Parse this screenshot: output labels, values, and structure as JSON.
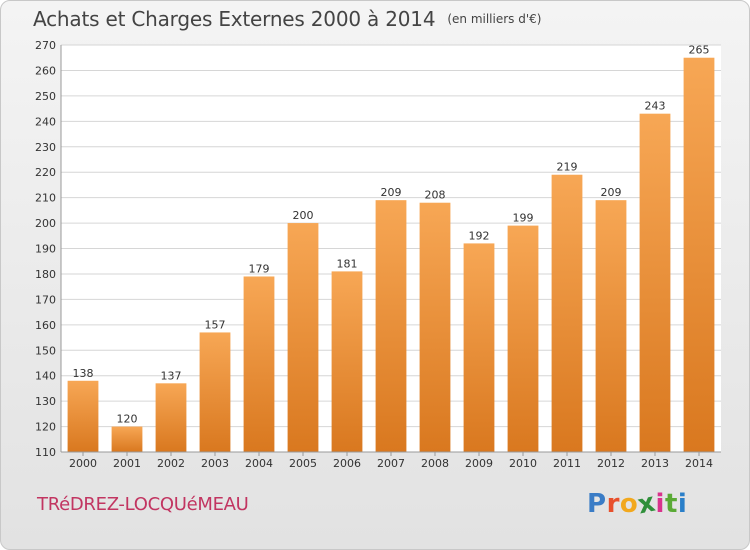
{
  "header": {
    "title": "Achats et Charges Externes 2000 à 2014",
    "unit": "(en milliers d'€)"
  },
  "footer": {
    "commune": "TRéDREZ-LOCQUéMEAU",
    "logo_letters": [
      "P",
      "r",
      "o",
      "x",
      "i",
      "t",
      "i"
    ],
    "logo_colors": [
      "#3a7cc6",
      "#e8502c",
      "#f2a81d",
      "#2f8f3a",
      "#d9338c",
      "#5aaa35",
      "#2a7fc9"
    ]
  },
  "colors": {
    "bar_top": "#f7a755",
    "bar_bottom": "#d9781f",
    "grid": "#d6d6d6",
    "axis": "#999999",
    "text": "#333333"
  },
  "chart_data": {
    "type": "bar",
    "categories": [
      "2000",
      "2001",
      "2002",
      "2003",
      "2004",
      "2005",
      "2006",
      "2007",
      "2008",
      "2009",
      "2010",
      "2011",
      "2012",
      "2013",
      "2014"
    ],
    "values": [
      138,
      120,
      137,
      157,
      179,
      200,
      181,
      209,
      208,
      192,
      199,
      219,
      209,
      243,
      265
    ],
    "ylim": [
      110,
      270
    ],
    "yticks": [
      110,
      120,
      130,
      140,
      150,
      160,
      170,
      180,
      190,
      200,
      210,
      220,
      230,
      240,
      250,
      260,
      270
    ],
    "grid": true,
    "legend": "none"
  }
}
